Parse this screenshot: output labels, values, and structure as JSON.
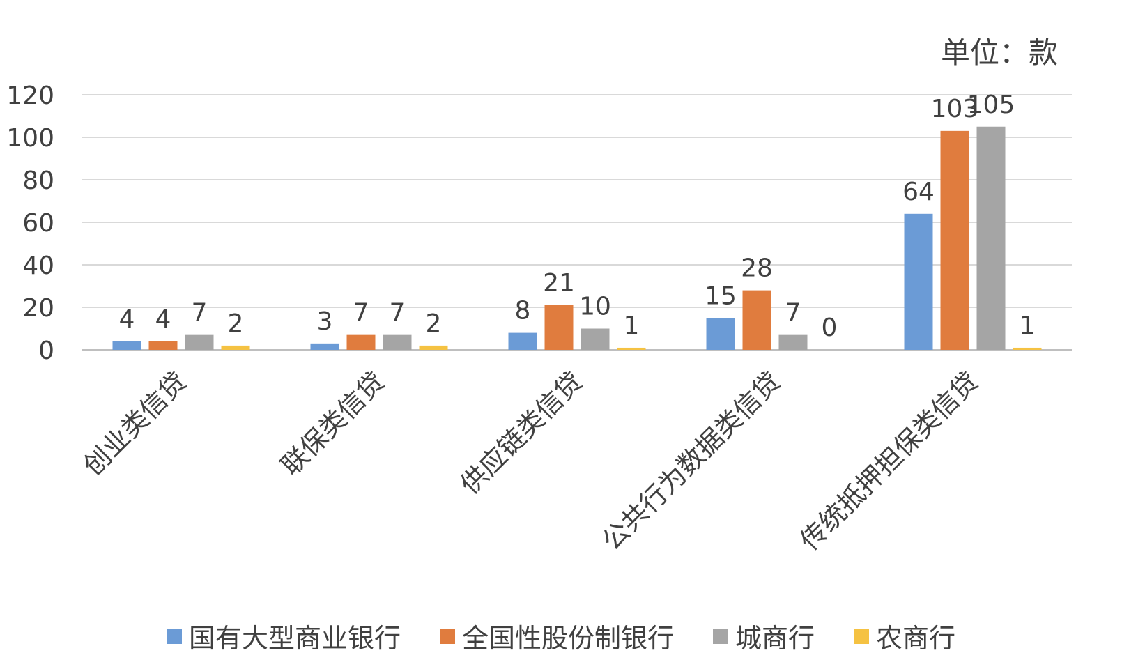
{
  "unit_label": "单位：款",
  "colors": {
    "axis": "#bfbfbf",
    "grid": "#d9d9d9",
    "text": "#404040"
  },
  "chart_data": {
    "type": "bar",
    "ylim": [
      0,
      120
    ],
    "yticks": [
      0,
      20,
      40,
      60,
      80,
      100,
      120
    ],
    "grid": true,
    "legend_position": "bottom",
    "categories": [
      "创业类信贷",
      "联保类信贷",
      "供应链类信贷",
      "公共行为数据类信贷",
      "传统抵押担保类信贷"
    ],
    "series": [
      {
        "name": "国有大型商业银行",
        "color": "#6b9bd6",
        "values": [
          4,
          3,
          8,
          15,
          64
        ]
      },
      {
        "name": "全国性股份制银行",
        "color": "#e07c3e",
        "values": [
          4,
          7,
          21,
          28,
          103
        ]
      },
      {
        "name": "城商行",
        "color": "#a5a5a5",
        "values": [
          7,
          7,
          10,
          7,
          105
        ]
      },
      {
        "name": "农商行",
        "color": "#f5c242",
        "values": [
          2,
          2,
          1,
          0,
          1
        ]
      }
    ]
  }
}
